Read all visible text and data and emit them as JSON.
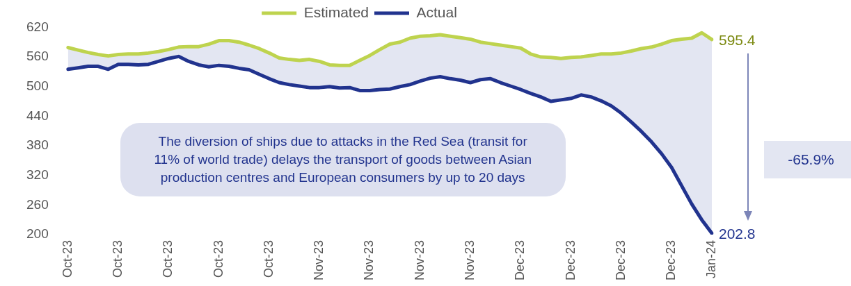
{
  "chart_data": {
    "type": "line",
    "legend": "top",
    "grid": false,
    "marker": "none",
    "line_style": "solid",
    "categories": [
      "Oct-23",
      null,
      null,
      null,
      null,
      "Oct-23",
      null,
      null,
      null,
      null,
      "Oct-23",
      null,
      null,
      null,
      null,
      "Oct-23",
      null,
      null,
      null,
      null,
      "Oct-23",
      null,
      null,
      null,
      null,
      "Nov-23",
      null,
      null,
      null,
      null,
      "Nov-23",
      null,
      null,
      null,
      null,
      "Nov-23",
      null,
      null,
      null,
      null,
      "Nov-23",
      null,
      null,
      null,
      null,
      "Dec-23",
      null,
      null,
      null,
      null,
      "Dec-23",
      null,
      null,
      null,
      null,
      "Dec-23",
      null,
      null,
      null,
      null,
      "Dec-23",
      null,
      null,
      null,
      "Jan-24"
    ],
    "ylim": [
      200,
      620
    ],
    "yticks": [
      200,
      260,
      320,
      380,
      440,
      500,
      560,
      620
    ],
    "series": [
      {
        "name": "Estimated",
        "color": "#bed34e",
        "values": [
          579,
          574,
          569,
          565,
          562,
          565,
          566,
          566,
          568,
          571,
          575,
          580,
          581,
          581,
          586,
          593,
          593,
          590,
          584,
          577,
          568,
          558,
          555,
          553,
          555,
          551,
          544,
          543,
          543,
          553,
          563,
          575,
          586,
          590,
          598,
          602,
          603,
          605,
          602,
          599,
          596,
          590,
          587,
          584,
          581,
          578,
          566,
          560,
          559,
          557,
          559,
          560,
          563,
          566,
          566,
          568,
          572,
          577,
          580,
          586,
          593,
          596,
          598,
          609,
          595.4
        ],
        "value_labels": [
          null,
          null,
          null,
          null,
          null,
          null,
          null,
          null,
          null,
          null,
          null,
          null,
          null,
          null,
          null,
          null,
          null,
          null,
          null,
          null,
          null,
          null,
          null,
          null,
          null,
          null,
          null,
          null,
          null,
          null,
          null,
          null,
          null,
          null,
          null,
          null,
          null,
          null,
          null,
          null,
          null,
          null,
          null,
          null,
          null,
          null,
          null,
          null,
          null,
          null,
          null,
          null,
          null,
          null,
          null,
          null,
          null,
          null,
          null,
          null,
          null,
          null,
          null,
          null,
          "595.4"
        ]
      },
      {
        "name": "Actual",
        "color": "#21338e",
        "lower": [
          535,
          538,
          541,
          541,
          535,
          545,
          545,
          544,
          545,
          551,
          557,
          561,
          551,
          544,
          540,
          543,
          541,
          537,
          534,
          525,
          516,
          508,
          504,
          501,
          498,
          498,
          500,
          497,
          498,
          492,
          492,
          494,
          495,
          500,
          504,
          511,
          517,
          520,
          516,
          513,
          508,
          514,
          516,
          508,
          501,
          494,
          486,
          479,
          470,
          473,
          476,
          483,
          479,
          471,
          461,
          446,
          428,
          409,
          388,
          364,
          336,
          299,
          262,
          230,
          202.8
        ],
        "upper": [
          579,
          574,
          569,
          565,
          562,
          565,
          566,
          566,
          568,
          571,
          575,
          580,
          581,
          581,
          586,
          593,
          593,
          590,
          584,
          577,
          568,
          558,
          555,
          553,
          555,
          551,
          544,
          543,
          543,
          553,
          563,
          575,
          586,
          590,
          598,
          602,
          603,
          605,
          602,
          599,
          596,
          590,
          587,
          584,
          581,
          578,
          566,
          560,
          559,
          557,
          559,
          560,
          563,
          566,
          566,
          568,
          572,
          577,
          580,
          586,
          593,
          596,
          598,
          609,
          595.4
        ],
        "values": [
          535,
          538,
          541,
          541,
          535,
          545,
          545,
          544,
          545,
          551,
          557,
          561,
          551,
          544,
          540,
          543,
          541,
          537,
          534,
          525,
          516,
          508,
          504,
          501,
          498,
          498,
          500,
          497,
          498,
          492,
          492,
          494,
          495,
          500,
          504,
          511,
          517,
          520,
          516,
          513,
          508,
          514,
          516,
          508,
          501,
          494,
          486,
          479,
          470,
          473,
          476,
          483,
          479,
          471,
          461,
          446,
          428,
          409,
          388,
          364,
          336,
          299,
          262,
          230,
          202.8
        ],
        "value_labels": [
          null,
          null,
          null,
          null,
          null,
          null,
          null,
          null,
          null,
          null,
          null,
          null,
          null,
          null,
          null,
          null,
          null,
          null,
          null,
          null,
          null,
          null,
          null,
          null,
          null,
          null,
          null,
          null,
          null,
          null,
          null,
          null,
          null,
          null,
          null,
          null,
          null,
          null,
          null,
          null,
          null,
          null,
          null,
          null,
          null,
          null,
          null,
          null,
          null,
          null,
          null,
          null,
          null,
          null,
          null,
          null,
          null,
          null,
          null,
          null,
          null,
          null,
          null,
          null,
          "202.8"
        ]
      }
    ],
    "annotations": [
      "The diversion of ships due to attacks in the Red Sea (transit for 11% of world trade) delays the transport of goods between Asian production centres and European consumers by up to 20 days",
      "-65.9%"
    ]
  }
}
